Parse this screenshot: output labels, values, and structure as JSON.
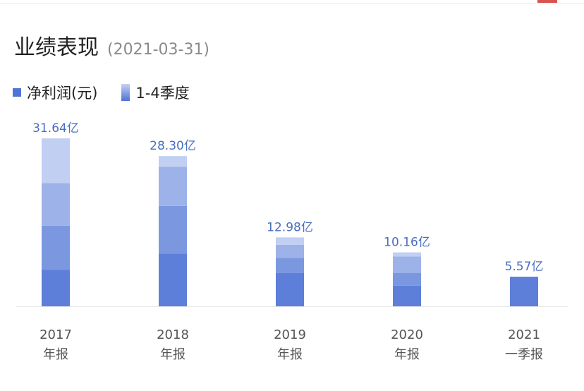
{
  "header": {
    "title": "业绩表现",
    "date": "(2021-03-31)"
  },
  "legend": {
    "items": [
      {
        "label": "净利润(元)",
        "color": "#4f73d6",
        "style": "solid"
      },
      {
        "label": "1-4季度",
        "color": "#4f73d6",
        "style": "gradient"
      }
    ]
  },
  "chart_data": {
    "type": "bar",
    "stacked": true,
    "categories": [
      {
        "year": "2017",
        "period": "年报"
      },
      {
        "year": "2018",
        "period": "年报"
      },
      {
        "year": "2019",
        "period": "年报"
      },
      {
        "year": "2020",
        "period": "年报"
      },
      {
        "year": "2021",
        "period": "一季报"
      }
    ],
    "totals": [
      "31.64亿",
      "28.30亿",
      "12.98亿",
      "10.16亿",
      "5.57亿"
    ],
    "segments": [
      [
        6.9,
        8.3,
        8.0,
        8.44
      ],
      [
        9.9,
        9.0,
        7.4,
        2.0
      ],
      [
        6.3,
        2.8,
        2.5,
        1.38
      ],
      [
        3.9,
        2.4,
        3.1,
        0.76
      ],
      [
        5.57
      ]
    ],
    "quarter_colors": [
      "#5d7fd9",
      "#7b97e0",
      "#9cb2e8",
      "#c0cff2"
    ],
    "label_color": "#4a6fc0"
  }
}
